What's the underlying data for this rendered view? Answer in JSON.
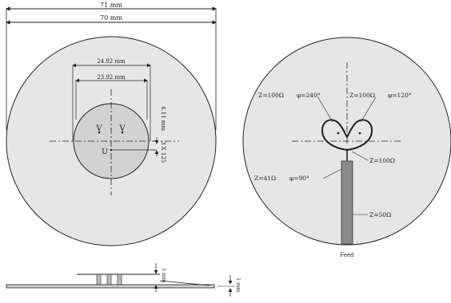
{
  "dimensions": {
    "outer_width": "71 mm",
    "disc_diameter": "70 mm",
    "outer_slot_spacing": "24.92 mm",
    "inner_slot_spacing": "23.92 mm",
    "offset_note": "4.11 mm",
    "rotated_note": "3 X 125",
    "feed_vertical": "1 mm",
    "feed_side": "1 mm"
  },
  "markers": {
    "slot_left": "V",
    "slot_right": "V",
    "center": "U"
  },
  "annotations": {
    "z1": "Z=100Ω",
    "phi1": "φ=240°",
    "z2": "Z=100Ω",
    "phi2": "φ=120°",
    "z3": "Z=100Ω",
    "z4": "Z=41Ω",
    "phi4": "φ=90°",
    "z5": "Z=50Ω",
    "feed": "Feed"
  },
  "colors": {
    "disc_fill": "#e6e6e6",
    "inner_disc_fill": "#d2d2d2",
    "strip_fill": "#8a8a8a",
    "line": "#222222"
  }
}
